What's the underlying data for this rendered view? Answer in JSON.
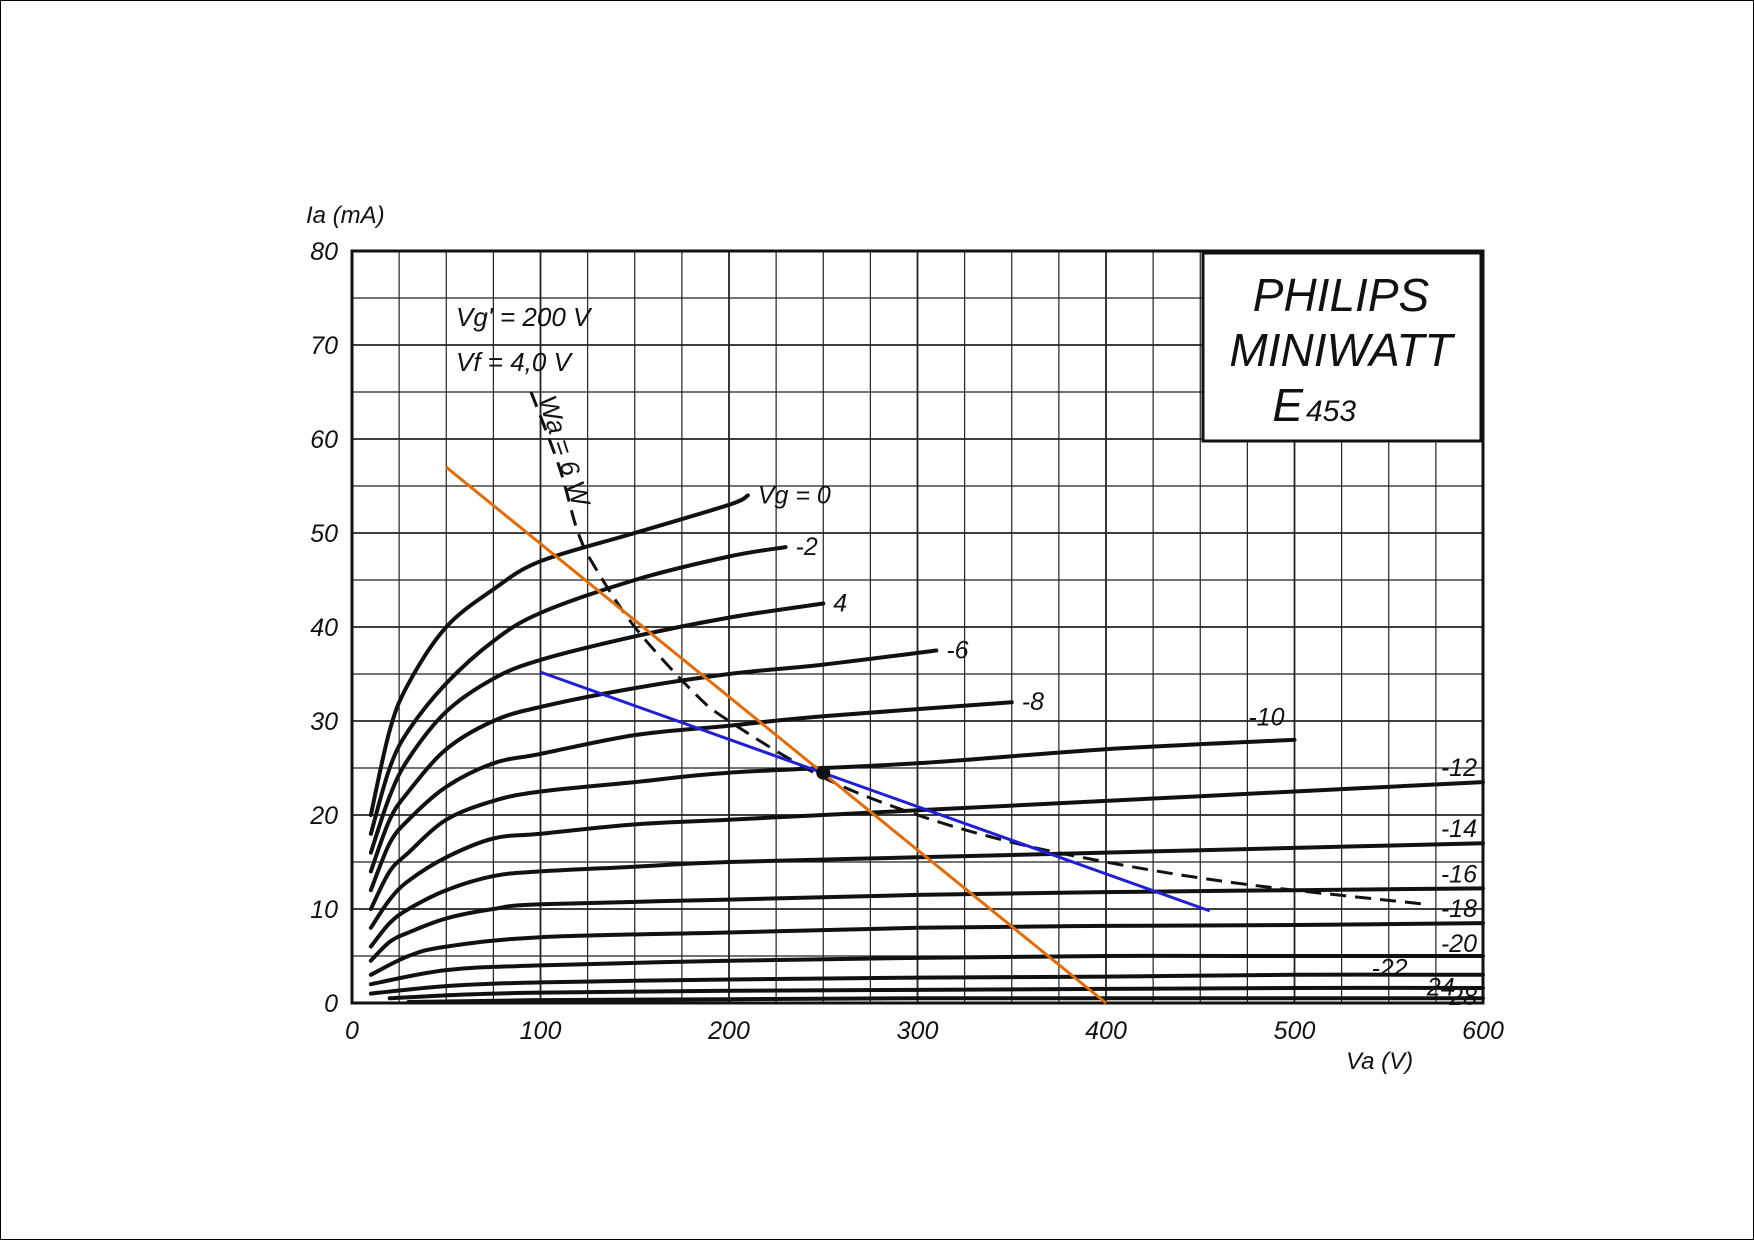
{
  "chart_data": {
    "type": "line",
    "xlabel": "Va (V)",
    "ylabel": "Ia (mA)",
    "xlim": [
      0,
      600
    ],
    "ylim": [
      0,
      80
    ],
    "x_ticks": [
      "0",
      "100",
      "200",
      "300",
      "400",
      "500",
      "600"
    ],
    "y_ticks": [
      "0",
      "10",
      "20",
      "30",
      "40",
      "50",
      "60",
      "70",
      "80"
    ],
    "grid": true,
    "brand": {
      "line1": "PHILIPS",
      "line2": "MINIWATT",
      "line3": "E",
      "line4": "453"
    },
    "notes": {
      "screen_voltage": "Vg' = 200 V",
      "filament_voltage": "Vf = 4,0 V"
    },
    "series": [
      {
        "label": "Vg = 0",
        "points": [
          [
            10,
            20
          ],
          [
            20,
            29
          ],
          [
            30,
            34
          ],
          [
            50,
            40
          ],
          [
            75,
            44
          ],
          [
            100,
            47
          ],
          [
            150,
            50
          ],
          [
            200,
            53
          ],
          [
            210,
            54
          ]
        ]
      },
      {
        "label": "-2",
        "points": [
          [
            10,
            18
          ],
          [
            20,
            25
          ],
          [
            30,
            29
          ],
          [
            50,
            34
          ],
          [
            75,
            38.5
          ],
          [
            100,
            41.5
          ],
          [
            150,
            45
          ],
          [
            200,
            47.5
          ],
          [
            230,
            48.5
          ]
        ]
      },
      {
        "label": "4",
        "points": [
          [
            10,
            16
          ],
          [
            20,
            22
          ],
          [
            30,
            26
          ],
          [
            50,
            31
          ],
          [
            75,
            34.5
          ],
          [
            100,
            36.5
          ],
          [
            150,
            39
          ],
          [
            200,
            41
          ],
          [
            250,
            42.5
          ]
        ]
      },
      {
        "label": "-6",
        "points": [
          [
            10,
            14
          ],
          [
            20,
            19.5
          ],
          [
            30,
            22.5
          ],
          [
            50,
            27
          ],
          [
            75,
            30
          ],
          [
            100,
            31.5
          ],
          [
            150,
            33.5
          ],
          [
            200,
            35
          ],
          [
            250,
            36
          ],
          [
            310,
            37.5
          ]
        ]
      },
      {
        "label": "-8",
        "points": [
          [
            10,
            12
          ],
          [
            20,
            17
          ],
          [
            30,
            19.5
          ],
          [
            50,
            23
          ],
          [
            75,
            25.5
          ],
          [
            100,
            26.5
          ],
          [
            150,
            28.5
          ],
          [
            200,
            29.5
          ],
          [
            250,
            30.5
          ],
          [
            350,
            32
          ]
        ]
      },
      {
        "label": "-10",
        "points": [
          [
            10,
            10
          ],
          [
            20,
            14
          ],
          [
            30,
            16
          ],
          [
            50,
            19.5
          ],
          [
            75,
            21.5
          ],
          [
            100,
            22.5
          ],
          [
            150,
            23.5
          ],
          [
            200,
            24.5
          ],
          [
            300,
            25.5
          ],
          [
            400,
            27
          ],
          [
            500,
            28
          ]
        ]
      },
      {
        "label": "-12",
        "points": [
          [
            10,
            8
          ],
          [
            20,
            11
          ],
          [
            30,
            13
          ],
          [
            50,
            15.5
          ],
          [
            75,
            17.5
          ],
          [
            100,
            18
          ],
          [
            150,
            19
          ],
          [
            200,
            19.5
          ],
          [
            300,
            20.5
          ],
          [
            400,
            21.5
          ],
          [
            500,
            22.5
          ],
          [
            600,
            23.5
          ]
        ]
      },
      {
        "label": "-14",
        "points": [
          [
            10,
            6
          ],
          [
            20,
            8.5
          ],
          [
            30,
            10
          ],
          [
            50,
            12
          ],
          [
            75,
            13.5
          ],
          [
            100,
            14
          ],
          [
            150,
            14.5
          ],
          [
            200,
            15
          ],
          [
            300,
            15.5
          ],
          [
            400,
            16
          ],
          [
            500,
            16.5
          ],
          [
            600,
            17
          ]
        ]
      },
      {
        "label": "-16",
        "points": [
          [
            10,
            4.5
          ],
          [
            20,
            6.5
          ],
          [
            30,
            7.5
          ],
          [
            50,
            9
          ],
          [
            75,
            10
          ],
          [
            100,
            10.5
          ],
          [
            200,
            11
          ],
          [
            300,
            11.5
          ],
          [
            400,
            11.8
          ],
          [
            500,
            12
          ],
          [
            600,
            12.2
          ]
        ]
      },
      {
        "label": "-18",
        "points": [
          [
            10,
            3
          ],
          [
            30,
            5
          ],
          [
            50,
            6
          ],
          [
            100,
            7
          ],
          [
            200,
            7.5
          ],
          [
            300,
            8
          ],
          [
            400,
            8.2
          ],
          [
            500,
            8.3
          ],
          [
            600,
            8.5
          ]
        ]
      },
      {
        "label": "-20",
        "points": [
          [
            10,
            2
          ],
          [
            50,
            3.5
          ],
          [
            100,
            4
          ],
          [
            200,
            4.5
          ],
          [
            300,
            4.8
          ],
          [
            400,
            5
          ],
          [
            500,
            5
          ],
          [
            600,
            5
          ]
        ]
      },
      {
        "label": "-22",
        "points": [
          [
            10,
            1
          ],
          [
            50,
            1.8
          ],
          [
            100,
            2.2
          ],
          [
            200,
            2.5
          ],
          [
            300,
            2.7
          ],
          [
            400,
            2.8
          ],
          [
            500,
            3
          ],
          [
            600,
            3
          ]
        ]
      },
      {
        "label": "24",
        "points": [
          [
            20,
            0.5
          ],
          [
            60,
            0.9
          ],
          [
            100,
            1.1
          ],
          [
            200,
            1.3
          ],
          [
            300,
            1.4
          ],
          [
            400,
            1.5
          ],
          [
            500,
            1.6
          ],
          [
            600,
            1.6
          ]
        ]
      },
      {
        "label": "-28",
        "points": [
          [
            30,
            0.1
          ],
          [
            100,
            0.3
          ],
          [
            200,
            0.4
          ],
          [
            300,
            0.5
          ],
          [
            400,
            0.5
          ],
          [
            500,
            0.5
          ],
          [
            600,
            0.5
          ]
        ]
      }
    ],
    "dissipation_curve": {
      "label": "Wa = 6 W",
      "style": "dashed",
      "points": [
        [
          95,
          65
        ],
        [
          110,
          57
        ],
        [
          120,
          50
        ],
        [
          130,
          46
        ],
        [
          150,
          40
        ],
        [
          180,
          33.3
        ],
        [
          200,
          30
        ],
        [
          250,
          24
        ],
        [
          300,
          20
        ],
        [
          350,
          17.1
        ],
        [
          400,
          15
        ],
        [
          450,
          13.3
        ],
        [
          500,
          12
        ],
        [
          570,
          10.5
        ]
      ]
    },
    "load_lines": [
      {
        "color": "#e36c09",
        "points": [
          [
            50,
            57
          ],
          [
            400,
            0
          ]
        ]
      },
      {
        "color": "#1f1fd6",
        "points": [
          [
            100,
            35.2
          ],
          [
            455,
            9.8
          ]
        ]
      }
    ],
    "operating_point": {
      "x": 250,
      "y": 24.5
    }
  }
}
